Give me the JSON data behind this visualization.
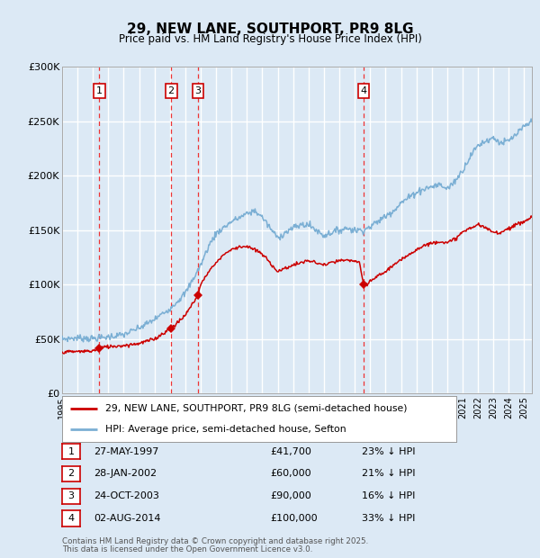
{
  "title": "29, NEW LANE, SOUTHPORT, PR9 8LG",
  "subtitle": "Price paid vs. HM Land Registry's House Price Index (HPI)",
  "ylim": [
    0,
    300000
  ],
  "xlim_start": 1995.0,
  "xlim_end": 2025.5,
  "background_color": "#dce9f5",
  "grid_color": "#ffffff",
  "red_line_color": "#cc0000",
  "blue_line_color": "#7bafd4",
  "dashed_line_color": "#ee3333",
  "marker_color": "#cc0000",
  "sale_points": [
    {
      "label": "1",
      "date_num": 1997.41,
      "price": 41700
    },
    {
      "label": "2",
      "date_num": 2002.08,
      "price": 60000
    },
    {
      "label": "3",
      "date_num": 2003.81,
      "price": 90000
    },
    {
      "label": "4",
      "date_num": 2014.58,
      "price": 100000
    }
  ],
  "legend_entries": [
    "29, NEW LANE, SOUTHPORT, PR9 8LG (semi-detached house)",
    "HPI: Average price, semi-detached house, Sefton"
  ],
  "footer_line1": "Contains HM Land Registry data © Crown copyright and database right 2025.",
  "footer_line2": "This data is licensed under the Open Government Licence v3.0.",
  "table_rows": [
    [
      "1",
      "27-MAY-1997",
      "£41,700",
      "23% ↓ HPI"
    ],
    [
      "2",
      "28-JAN-2002",
      "£60,000",
      "21% ↓ HPI"
    ],
    [
      "3",
      "24-OCT-2003",
      "£90,000",
      "16% ↓ HPI"
    ],
    [
      "4",
      "02-AUG-2014",
      "£100,000",
      "33% ↓ HPI"
    ]
  ],
  "hpi_anchors": [
    [
      1995.0,
      50000
    ],
    [
      1996.0,
      51000
    ],
    [
      1997.0,
      50500
    ],
    [
      1997.5,
      51000
    ],
    [
      1998.0,
      52000
    ],
    [
      1999.0,
      54000
    ],
    [
      2000.0,
      60000
    ],
    [
      2001.0,
      68000
    ],
    [
      2002.0,
      78000
    ],
    [
      2003.0,
      92000
    ],
    [
      2004.0,
      118000
    ],
    [
      2004.5,
      135000
    ],
    [
      2005.0,
      147000
    ],
    [
      2006.0,
      158000
    ],
    [
      2007.0,
      165000
    ],
    [
      2007.5,
      168000
    ],
    [
      2008.0,
      162000
    ],
    [
      2008.5,
      152000
    ],
    [
      2009.0,
      143000
    ],
    [
      2009.5,
      148000
    ],
    [
      2010.0,
      152000
    ],
    [
      2010.5,
      155000
    ],
    [
      2011.0,
      155000
    ],
    [
      2011.5,
      150000
    ],
    [
      2012.0,
      145000
    ],
    [
      2012.5,
      148000
    ],
    [
      2013.0,
      150000
    ],
    [
      2013.5,
      152000
    ],
    [
      2014.0,
      150000
    ],
    [
      2014.5,
      150000
    ],
    [
      2015.0,
      153000
    ],
    [
      2015.5,
      158000
    ],
    [
      2016.0,
      163000
    ],
    [
      2016.5,
      168000
    ],
    [
      2017.0,
      175000
    ],
    [
      2017.5,
      180000
    ],
    [
      2018.0,
      185000
    ],
    [
      2018.5,
      188000
    ],
    [
      2019.0,
      190000
    ],
    [
      2019.5,
      192000
    ],
    [
      2020.0,
      188000
    ],
    [
      2020.5,
      195000
    ],
    [
      2021.0,
      205000
    ],
    [
      2021.5,
      218000
    ],
    [
      2022.0,
      228000
    ],
    [
      2022.5,
      232000
    ],
    [
      2023.0,
      235000
    ],
    [
      2023.5,
      230000
    ],
    [
      2024.0,
      232000
    ],
    [
      2024.5,
      238000
    ],
    [
      2025.0,
      245000
    ],
    [
      2025.5,
      250000
    ]
  ],
  "red_anchors": [
    [
      1995.0,
      38000
    ],
    [
      1996.0,
      38500
    ],
    [
      1997.0,
      39000
    ],
    [
      1997.41,
      41700
    ],
    [
      1998.0,
      43000
    ],
    [
      1999.0,
      44000
    ],
    [
      2000.0,
      46000
    ],
    [
      2001.0,
      50000
    ],
    [
      2002.08,
      60000
    ],
    [
      2002.5,
      65000
    ],
    [
      2003.0,
      72000
    ],
    [
      2003.81,
      90000
    ],
    [
      2004.0,
      100000
    ],
    [
      2004.5,
      112000
    ],
    [
      2005.0,
      120000
    ],
    [
      2005.5,
      128000
    ],
    [
      2006.0,
      132000
    ],
    [
      2006.5,
      135000
    ],
    [
      2007.0,
      135000
    ],
    [
      2007.5,
      132000
    ],
    [
      2008.0,
      128000
    ],
    [
      2008.5,
      120000
    ],
    [
      2009.0,
      112000
    ],
    [
      2009.5,
      115000
    ],
    [
      2010.0,
      118000
    ],
    [
      2010.5,
      120000
    ],
    [
      2011.0,
      122000
    ],
    [
      2011.5,
      120000
    ],
    [
      2012.0,
      118000
    ],
    [
      2012.5,
      120000
    ],
    [
      2013.0,
      122000
    ],
    [
      2013.5,
      122000
    ],
    [
      2014.0,
      122000
    ],
    [
      2014.3,
      120000
    ],
    [
      2014.58,
      100000
    ],
    [
      2014.8,
      100000
    ],
    [
      2015.0,
      103000
    ],
    [
      2015.5,
      108000
    ],
    [
      2016.0,
      112000
    ],
    [
      2016.5,
      118000
    ],
    [
      2017.0,
      122000
    ],
    [
      2017.5,
      128000
    ],
    [
      2018.0,
      132000
    ],
    [
      2018.5,
      136000
    ],
    [
      2019.0,
      138000
    ],
    [
      2019.5,
      140000
    ],
    [
      2020.0,
      138000
    ],
    [
      2020.5,
      142000
    ],
    [
      2021.0,
      148000
    ],
    [
      2021.5,
      152000
    ],
    [
      2022.0,
      155000
    ],
    [
      2022.5,
      152000
    ],
    [
      2023.0,
      148000
    ],
    [
      2023.5,
      148000
    ],
    [
      2024.0,
      152000
    ],
    [
      2024.5,
      155000
    ],
    [
      2025.0,
      158000
    ],
    [
      2025.5,
      162000
    ]
  ]
}
